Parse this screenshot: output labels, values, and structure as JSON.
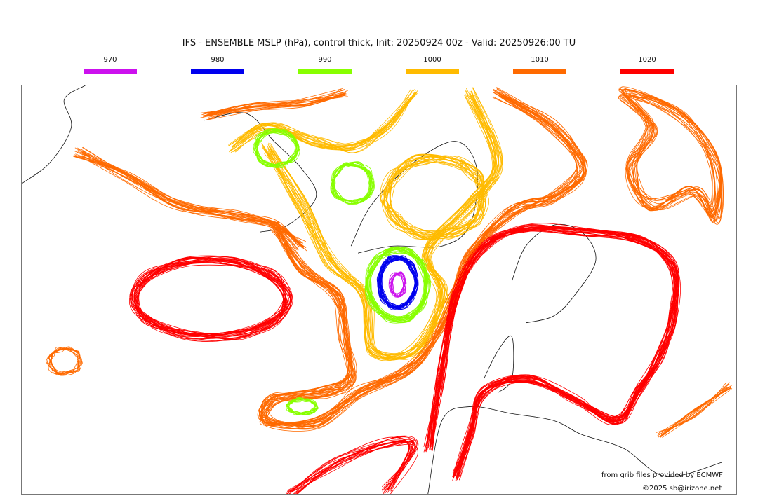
{
  "title": "IFS - ENSEMBLE MSLP (hPa), control thick, Init: 20250924 00z - Valid: 20250926:00 TU",
  "legend": [
    {
      "label": "970",
      "color": "#cc11ee"
    },
    {
      "label": "980",
      "color": "#0000ee"
    },
    {
      "label": "990",
      "color": "#88ff00"
    },
    {
      "label": "1000",
      "color": "#ffbb00"
    },
    {
      "label": "1010",
      "color": "#ff6a00"
    },
    {
      "label": "1020",
      "color": "#ff0000"
    }
  ],
  "credits": {
    "source": "from grib files provided by ECMWF",
    "copyright": "©2025 sb@irizone.net"
  }
}
